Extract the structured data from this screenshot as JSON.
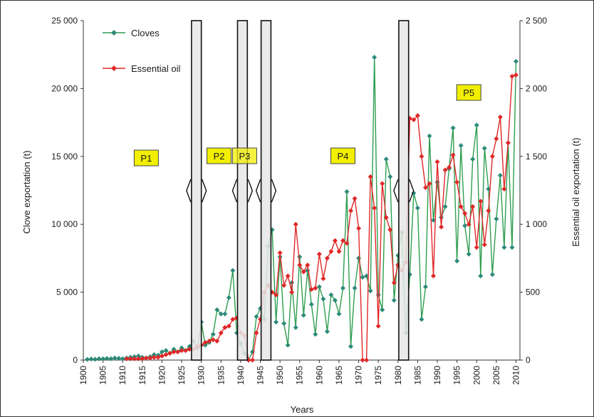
{
  "chart_data": {
    "type": "line",
    "xlabel": "Years",
    "ylabel_left": "Clove exportation (t)",
    "ylabel_right": "Essential oil exportation (t)",
    "xlim": [
      1900,
      2011
    ],
    "ylim_left": [
      0,
      25000
    ],
    "ylim_right": [
      0,
      2500
    ],
    "x_ticks": [
      "1900",
      "1905",
      "1910",
      "1915",
      "1920",
      "1925",
      "1930",
      "1935",
      "1940",
      "1945",
      "1950",
      "1955",
      "1960",
      "1965",
      "1970",
      "1975",
      "1980",
      "1985",
      "1990",
      "1995",
      "2000",
      "2005",
      "2010"
    ],
    "y_left_ticks": [
      "0",
      "5 000",
      "10 000",
      "15 000",
      "20 000",
      "25 000"
    ],
    "y_right_ticks": [
      "0",
      "500",
      "1 000",
      "1 500",
      "2 000",
      "2 500"
    ],
    "grid": false,
    "legend_position": "top-left",
    "series": [
      {
        "name": "Cloves",
        "axis": "left",
        "color": "#2e9e4f",
        "marker_color": "#2e8b7a",
        "x": [
          1901,
          1902,
          1903,
          1904,
          1905,
          1906,
          1907,
          1908,
          1909,
          1910,
          1911,
          1912,
          1913,
          1914,
          1915,
          1916,
          1917,
          1918,
          1919,
          1920,
          1921,
          1922,
          1923,
          1924,
          1925,
          1926,
          1927,
          1928,
          1929,
          1930,
          1931,
          1932,
          1933,
          1934,
          1935,
          1936,
          1937,
          1938,
          1939,
          1940,
          1941,
          1942,
          1943,
          1944,
          1945,
          1946,
          1947,
          1948,
          1949,
          1950,
          1951,
          1952,
          1953,
          1954,
          1955,
          1956,
          1957,
          1958,
          1959,
          1960,
          1961,
          1962,
          1963,
          1964,
          1965,
          1966,
          1967,
          1968,
          1969,
          1970,
          1971,
          1972,
          1973,
          1974,
          1975,
          1976,
          1977,
          1978,
          1979,
          1980,
          1981,
          1982,
          1983,
          1984,
          1985,
          1986,
          1987,
          1988,
          1989,
          1990,
          1991,
          1992,
          1993,
          1994,
          1995,
          1996,
          1997,
          1998,
          1999,
          2000,
          2001,
          2002,
          2003,
          2004,
          2005,
          2006,
          2007,
          2008,
          2009,
          2010
        ],
        "y": [
          50,
          80,
          60,
          100,
          90,
          120,
          100,
          150,
          130,
          100,
          150,
          200,
          250,
          300,
          200,
          150,
          250,
          400,
          350,
          600,
          700,
          500,
          800,
          600,
          900,
          700,
          1000,
          1400,
          900,
          2800,
          1100,
          1300,
          1900,
          3700,
          3400,
          3400,
          4600,
          6600,
          2000,
          1200,
          500,
          0,
          600,
          3200,
          3800,
          3000,
          8400,
          9600,
          2800,
          7600,
          2700,
          1100,
          5700,
          2400,
          7600,
          3300,
          6600,
          4100,
          1900,
          5400,
          4500,
          2100,
          4800,
          4400,
          3400,
          5300,
          12400,
          1000,
          5300,
          7500,
          6100,
          6200,
          5100,
          22300,
          4800,
          3700,
          14800,
          13500,
          4400,
          7700,
          9400,
          2000,
          6300,
          12300,
          11200,
          3000,
          5400,
          16500,
          10300,
          13100,
          10500,
          11300,
          14100,
          17100,
          7300,
          15800,
          9900,
          7800,
          14800,
          17300,
          6200,
          15600,
          12600,
          6300,
          10400,
          13600,
          8300,
          16000,
          8300,
          22000
        ]
      },
      {
        "name": "Essential oil",
        "axis": "right",
        "color": "#e02828",
        "marker_color": "#e02828",
        "x": [
          1911,
          1912,
          1913,
          1914,
          1915,
          1916,
          1917,
          1918,
          1919,
          1920,
          1921,
          1922,
          1923,
          1924,
          1925,
          1926,
          1927,
          1928,
          1929,
          1930,
          1931,
          1932,
          1933,
          1934,
          1935,
          1936,
          1937,
          1938,
          1939,
          1940,
          1941,
          1942,
          1943,
          1944,
          1945,
          1946,
          1947,
          1948,
          1949,
          1950,
          1951,
          1952,
          1953,
          1954,
          1955,
          1956,
          1957,
          1958,
          1959,
          1960,
          1961,
          1962,
          1963,
          1964,
          1965,
          1966,
          1967,
          1968,
          1969,
          1970,
          1971,
          1972,
          1973,
          1974,
          1975,
          1976,
          1977,
          1978,
          1979,
          1980,
          1981,
          1982,
          1983,
          1984,
          1985,
          1986,
          1987,
          1988,
          1989,
          1990,
          1991,
          1992,
          1993,
          1994,
          1995,
          1996,
          1997,
          1998,
          1999,
          2000,
          2001,
          2002,
          2003,
          2004,
          2005,
          2006,
          2007,
          2008,
          2009,
          2010
        ],
        "y": [
          10,
          10,
          10,
          10,
          10,
          15,
          15,
          20,
          20,
          30,
          40,
          50,
          60,
          60,
          70,
          70,
          80,
          80,
          100,
          110,
          130,
          140,
          150,
          140,
          200,
          240,
          250,
          300,
          310,
          200,
          180,
          0,
          0,
          200,
          300,
          500,
          550,
          500,
          480,
          790,
          550,
          620,
          500,
          1000,
          700,
          650,
          700,
          520,
          530,
          780,
          600,
          750,
          800,
          880,
          800,
          880,
          860,
          1100,
          1190,
          970,
          0,
          0,
          1350,
          1120,
          250,
          1300,
          1050,
          960,
          570,
          700,
          660,
          720,
          1780,
          1770,
          1800,
          1500,
          1270,
          1300,
          620,
          1460,
          980,
          1400,
          1420,
          1510,
          1310,
          1130,
          1080,
          1000,
          1130,
          830,
          1170,
          850,
          1100,
          1500,
          1630,
          1790,
          1260,
          1600,
          2090,
          2100
        ]
      }
    ],
    "periods": [
      {
        "label": "P1",
        "x": 1916
      },
      {
        "label": "P2",
        "x": 1934.5
      },
      {
        "label": "P3",
        "x": 1941
      },
      {
        "label": "P4",
        "x": 1966
      },
      {
        "label": "P5",
        "x": 1998
      }
    ],
    "breaks": [
      {
        "x1": 1927.5,
        "x2": 1930
      },
      {
        "x1": 1939.2,
        "x2": 1941.7
      },
      {
        "x1": 1945.2,
        "x2": 1947.7
      },
      {
        "x1": 1980.2,
        "x2": 1982.7
      }
    ]
  }
}
